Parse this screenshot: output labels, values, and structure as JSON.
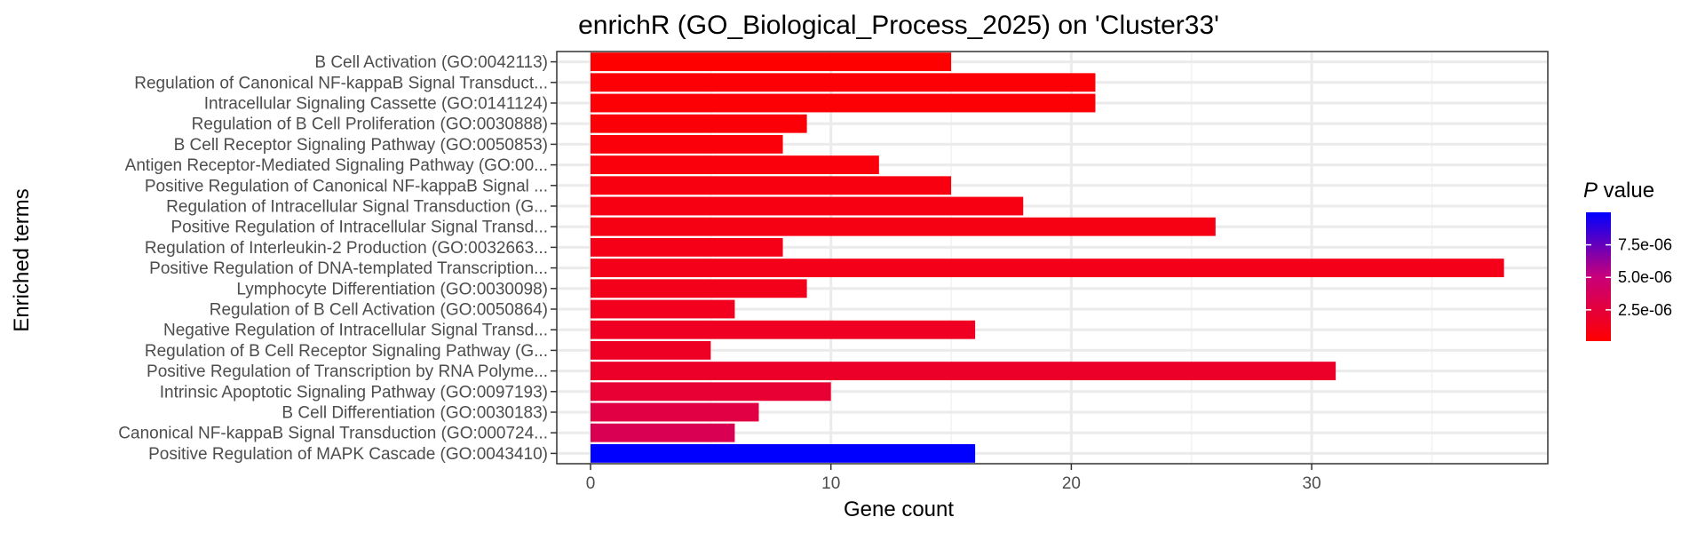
{
  "chart_data": {
    "type": "bar",
    "orientation": "horizontal",
    "title": "enrichR (GO_Biological_Process_2025) on 'Cluster33'",
    "xlabel": "Gene count",
    "ylabel": "Enriched terms",
    "xlim": [
      0,
      39.8
    ],
    "xticks": [
      0,
      10,
      20,
      30
    ],
    "grid": true,
    "legend": {
      "title_italic": "P",
      "title_rest": " value",
      "position": "right",
      "range": [
        1e-07,
        1e-05
      ],
      "ticks": [
        {
          "value": 2.5e-06,
          "label": "2.5e-06"
        },
        {
          "value": 5e-06,
          "label": "5.0e-06"
        },
        {
          "value": 7.5e-06,
          "label": "7.5e-06"
        }
      ],
      "low_color": "#ff0000",
      "high_color": "#0000ff"
    },
    "categories": [
      "B Cell Activation (GO:0042113)",
      "Regulation of Canonical NF-kappaB Signal Transduct...",
      "Intracellular Signaling Cassette (GO:0141124)",
      "Regulation of B Cell Proliferation (GO:0030888)",
      "B Cell Receptor Signaling Pathway (GO:0050853)",
      "Antigen Receptor-Mediated Signaling Pathway (GO:00...",
      "Positive Regulation of Canonical NF-kappaB Signal ...",
      "Regulation of Intracellular Signal Transduction (G...",
      "Positive Regulation of Intracellular Signal Transd...",
      "Regulation of Interleukin-2 Production (GO:0032663...",
      "Positive Regulation of DNA-templated Transcription...",
      "Lymphocyte Differentiation (GO:0030098)",
      "Regulation of B Cell Activation (GO:0050864)",
      "Negative Regulation of Intracellular Signal Transd...",
      "Regulation of B Cell Receptor Signaling Pathway (G...",
      "Positive Regulation of Transcription by RNA Polyme...",
      "Intrinsic Apoptotic Signaling Pathway (GO:0097193)",
      "B Cell Differentiation (GO:0030183)",
      "Canonical NF-kappaB Signal Transduction (GO:000724...",
      "Positive Regulation of MAPK Cascade (GO:0043410)"
    ],
    "values": [
      15,
      21,
      21,
      9,
      8,
      12,
      15,
      18,
      26,
      8,
      38,
      9,
      6,
      16,
      5,
      31,
      10,
      7,
      6,
      16
    ],
    "pvalues": [
      1e-07,
      3e-07,
      3e-07,
      4e-07,
      5e-07,
      6e-07,
      7e-07,
      8e-07,
      9e-07,
      1e-06,
      1.1e-06,
      1.2e-06,
      1.3e-06,
      1.5e-06,
      1.6e-06,
      1.8e-06,
      2.2e-06,
      2.8e-06,
      3.5e-06,
      1e-05
    ]
  }
}
